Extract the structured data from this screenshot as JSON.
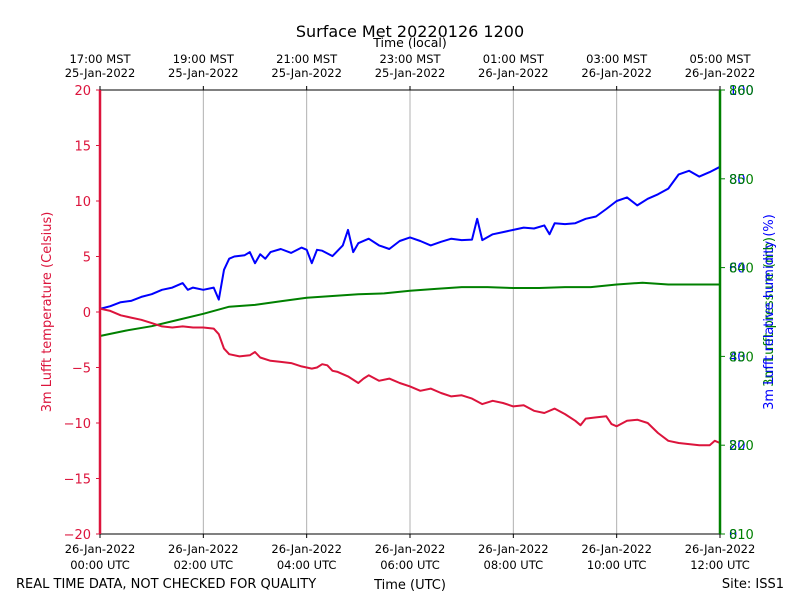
{
  "colors": {
    "temperature": "#dc143c",
    "humidity": "#0000ff",
    "pressure": "#008000",
    "grid": "#b0b0b0"
  },
  "footer": {
    "left": "REAL TIME DATA, NOT CHECKED FOR QUALITY",
    "right": "Site: ISS1"
  },
  "chart_data": {
    "type": "line",
    "title": "Surface Met 20220126 1200",
    "xlabel_bottom": "Time (UTC)",
    "xlabel_top": "Time (local)",
    "xlim_hours": [
      0,
      12
    ],
    "bottom_ticks": [
      {
        "h": 0,
        "l1": "26-Jan-2022",
        "l2": "00:00 UTC"
      },
      {
        "h": 2,
        "l1": "26-Jan-2022",
        "l2": "02:00 UTC"
      },
      {
        "h": 4,
        "l1": "26-Jan-2022",
        "l2": "04:00 UTC"
      },
      {
        "h": 6,
        "l1": "26-Jan-2022",
        "l2": "06:00 UTC"
      },
      {
        "h": 8,
        "l1": "26-Jan-2022",
        "l2": "08:00 UTC"
      },
      {
        "h": 10,
        "l1": "26-Jan-2022",
        "l2": "10:00 UTC"
      },
      {
        "h": 12,
        "l1": "26-Jan-2022",
        "l2": "12:00 UTC"
      }
    ],
    "top_ticks": [
      {
        "h": 0,
        "l1": "17:00 MST",
        "l2": "25-Jan-2022"
      },
      {
        "h": 2,
        "l1": "19:00 MST",
        "l2": "25-Jan-2022"
      },
      {
        "h": 4,
        "l1": "21:00 MST",
        "l2": "25-Jan-2022"
      },
      {
        "h": 6,
        "l1": "23:00 MST",
        "l2": "25-Jan-2022"
      },
      {
        "h": 8,
        "l1": "01:00 MST",
        "l2": "26-Jan-2022"
      },
      {
        "h": 10,
        "l1": "03:00 MST",
        "l2": "26-Jan-2022"
      },
      {
        "h": 12,
        "l1": "05:00 MST",
        "l2": "26-Jan-2022"
      }
    ],
    "left_axis": {
      "label": "3m Lufft temperature (Celsius)",
      "ylim": [
        -20,
        20
      ],
      "ticks": [
        {
          "v": -20,
          "label": "−20"
        },
        {
          "v": -15,
          "label": "−15"
        },
        {
          "v": -10,
          "label": "−10"
        },
        {
          "v": -5,
          "label": "−5"
        },
        {
          "v": 0,
          "label": "0"
        },
        {
          "v": 5,
          "label": "5"
        },
        {
          "v": 10,
          "label": "10"
        },
        {
          "v": 15,
          "label": "15"
        },
        {
          "v": 20,
          "label": "20"
        }
      ]
    },
    "right_axis_humidity": {
      "label": "3m Lufft relative humidity (%)",
      "ylim": [
        0,
        100
      ],
      "tick_values": [
        0,
        20,
        40,
        60,
        80,
        100
      ],
      "tick_labels": [
        "0",
        "20",
        "40",
        "60",
        "80",
        "100"
      ]
    },
    "right_axis_pressure": {
      "label": "3m Lufft pressure (mb)",
      "ylim": [
        810,
        860
      ],
      "tick_values": [
        810,
        820,
        830,
        840,
        850,
        860
      ],
      "tick_labels": [
        "810",
        "820",
        "830",
        "840",
        "850",
        "860"
      ]
    },
    "series": [
      {
        "name": "3m Lufft temperature",
        "axis": "left",
        "x": [
          0,
          0.2,
          0.4,
          0.6,
          0.8,
          1.0,
          1.2,
          1.4,
          1.6,
          1.8,
          2.0,
          2.2,
          2.3,
          2.4,
          2.5,
          2.7,
          2.9,
          3.0,
          3.1,
          3.3,
          3.5,
          3.7,
          3.9,
          4.1,
          4.2,
          4.3,
          4.4,
          4.5,
          4.6,
          4.8,
          5.0,
          5.1,
          5.2,
          5.4,
          5.6,
          5.8,
          6.0,
          6.2,
          6.4,
          6.6,
          6.8,
          7.0,
          7.2,
          7.4,
          7.6,
          7.8,
          8.0,
          8.2,
          8.4,
          8.6,
          8.8,
          9.0,
          9.2,
          9.3,
          9.4,
          9.6,
          9.8,
          9.9,
          10.0,
          10.2,
          10.4,
          10.6,
          10.8,
          11.0,
          11.2,
          11.4,
          11.6,
          11.8,
          11.9,
          12.0
        ],
        "values": [
          0.3,
          0.1,
          -0.3,
          -0.5,
          -0.7,
          -1.0,
          -1.3,
          -1.4,
          -1.3,
          -1.4,
          -1.4,
          -1.5,
          -2.0,
          -3.3,
          -3.8,
          -4.0,
          -3.9,
          -3.6,
          -4.1,
          -4.4,
          -4.5,
          -4.6,
          -4.9,
          -5.1,
          -5.0,
          -4.7,
          -4.8,
          -5.3,
          -5.4,
          -5.8,
          -6.4,
          -6.0,
          -5.7,
          -6.2,
          -6.0,
          -6.4,
          -6.7,
          -7.1,
          -6.9,
          -7.3,
          -7.6,
          -7.5,
          -7.8,
          -8.3,
          -8.0,
          -8.2,
          -8.5,
          -8.4,
          -8.9,
          -9.1,
          -8.7,
          -9.2,
          -9.8,
          -10.2,
          -9.6,
          -9.5,
          -9.4,
          -10.1,
          -10.3,
          -9.8,
          -9.7,
          -10.0,
          -10.9,
          -11.6,
          -11.8,
          -11.9,
          -12.0,
          -12.0,
          -11.6,
          -11.8
        ]
      },
      {
        "name": "3m Lufft relative humidity",
        "axis": "right_humidity",
        "x": [
          0,
          0.2,
          0.4,
          0.6,
          0.8,
          1.0,
          1.2,
          1.4,
          1.6,
          1.7,
          1.8,
          2.0,
          2.2,
          2.3,
          2.4,
          2.5,
          2.6,
          2.8,
          2.9,
          3.0,
          3.1,
          3.2,
          3.3,
          3.5,
          3.7,
          3.9,
          4.0,
          4.1,
          4.2,
          4.3,
          4.5,
          4.7,
          4.8,
          4.9,
          5.0,
          5.2,
          5.4,
          5.6,
          5.8,
          6.0,
          6.2,
          6.4,
          6.6,
          6.8,
          7.0,
          7.2,
          7.3,
          7.4,
          7.6,
          7.8,
          8.0,
          8.2,
          8.4,
          8.6,
          8.7,
          8.8,
          9.0,
          9.2,
          9.4,
          9.6,
          9.8,
          10.0,
          10.2,
          10.4,
          10.6,
          10.8,
          11.0,
          11.2,
          11.4,
          11.6,
          11.8,
          12.0
        ],
        "values": [
          50.7,
          51.3,
          52.2,
          52.5,
          53.4,
          54.0,
          55.0,
          55.5,
          56.5,
          55.0,
          55.5,
          55.0,
          55.5,
          52.8,
          59.5,
          62.0,
          62.5,
          62.8,
          63.5,
          61.0,
          63.0,
          62.0,
          63.5,
          64.2,
          63.3,
          64.5,
          64.0,
          61.0,
          64.0,
          63.8,
          62.6,
          65.0,
          68.5,
          63.5,
          65.5,
          66.5,
          65.0,
          64.2,
          66.0,
          66.8,
          66.0,
          65.0,
          65.8,
          66.5,
          66.2,
          66.3,
          71.0,
          66.2,
          67.5,
          68.0,
          68.5,
          69.0,
          68.8,
          69.5,
          67.5,
          70.0,
          69.8,
          70.0,
          71.0,
          71.5,
          73.2,
          75.0,
          75.8,
          74.0,
          75.5,
          76.5,
          77.8,
          81.0,
          81.8,
          80.5,
          81.5,
          82.7
        ]
      },
      {
        "name": "3m Lufft pressure",
        "axis": "right_pressure",
        "x": [
          0,
          0.5,
          1.0,
          1.5,
          2.0,
          2.5,
          3.0,
          3.5,
          4.0,
          4.5,
          5.0,
          5.5,
          6.0,
          6.5,
          7.0,
          7.5,
          8.0,
          8.5,
          9.0,
          9.5,
          10.0,
          10.5,
          11.0,
          11.5,
          12.0
        ],
        "values": [
          832.3,
          832.9,
          833.4,
          834.1,
          834.8,
          835.6,
          835.8,
          836.2,
          836.6,
          836.8,
          837.0,
          837.1,
          837.4,
          837.6,
          837.8,
          837.8,
          837.7,
          837.7,
          837.8,
          837.8,
          838.1,
          838.3,
          838.1,
          838.1,
          838.1
        ]
      }
    ]
  }
}
